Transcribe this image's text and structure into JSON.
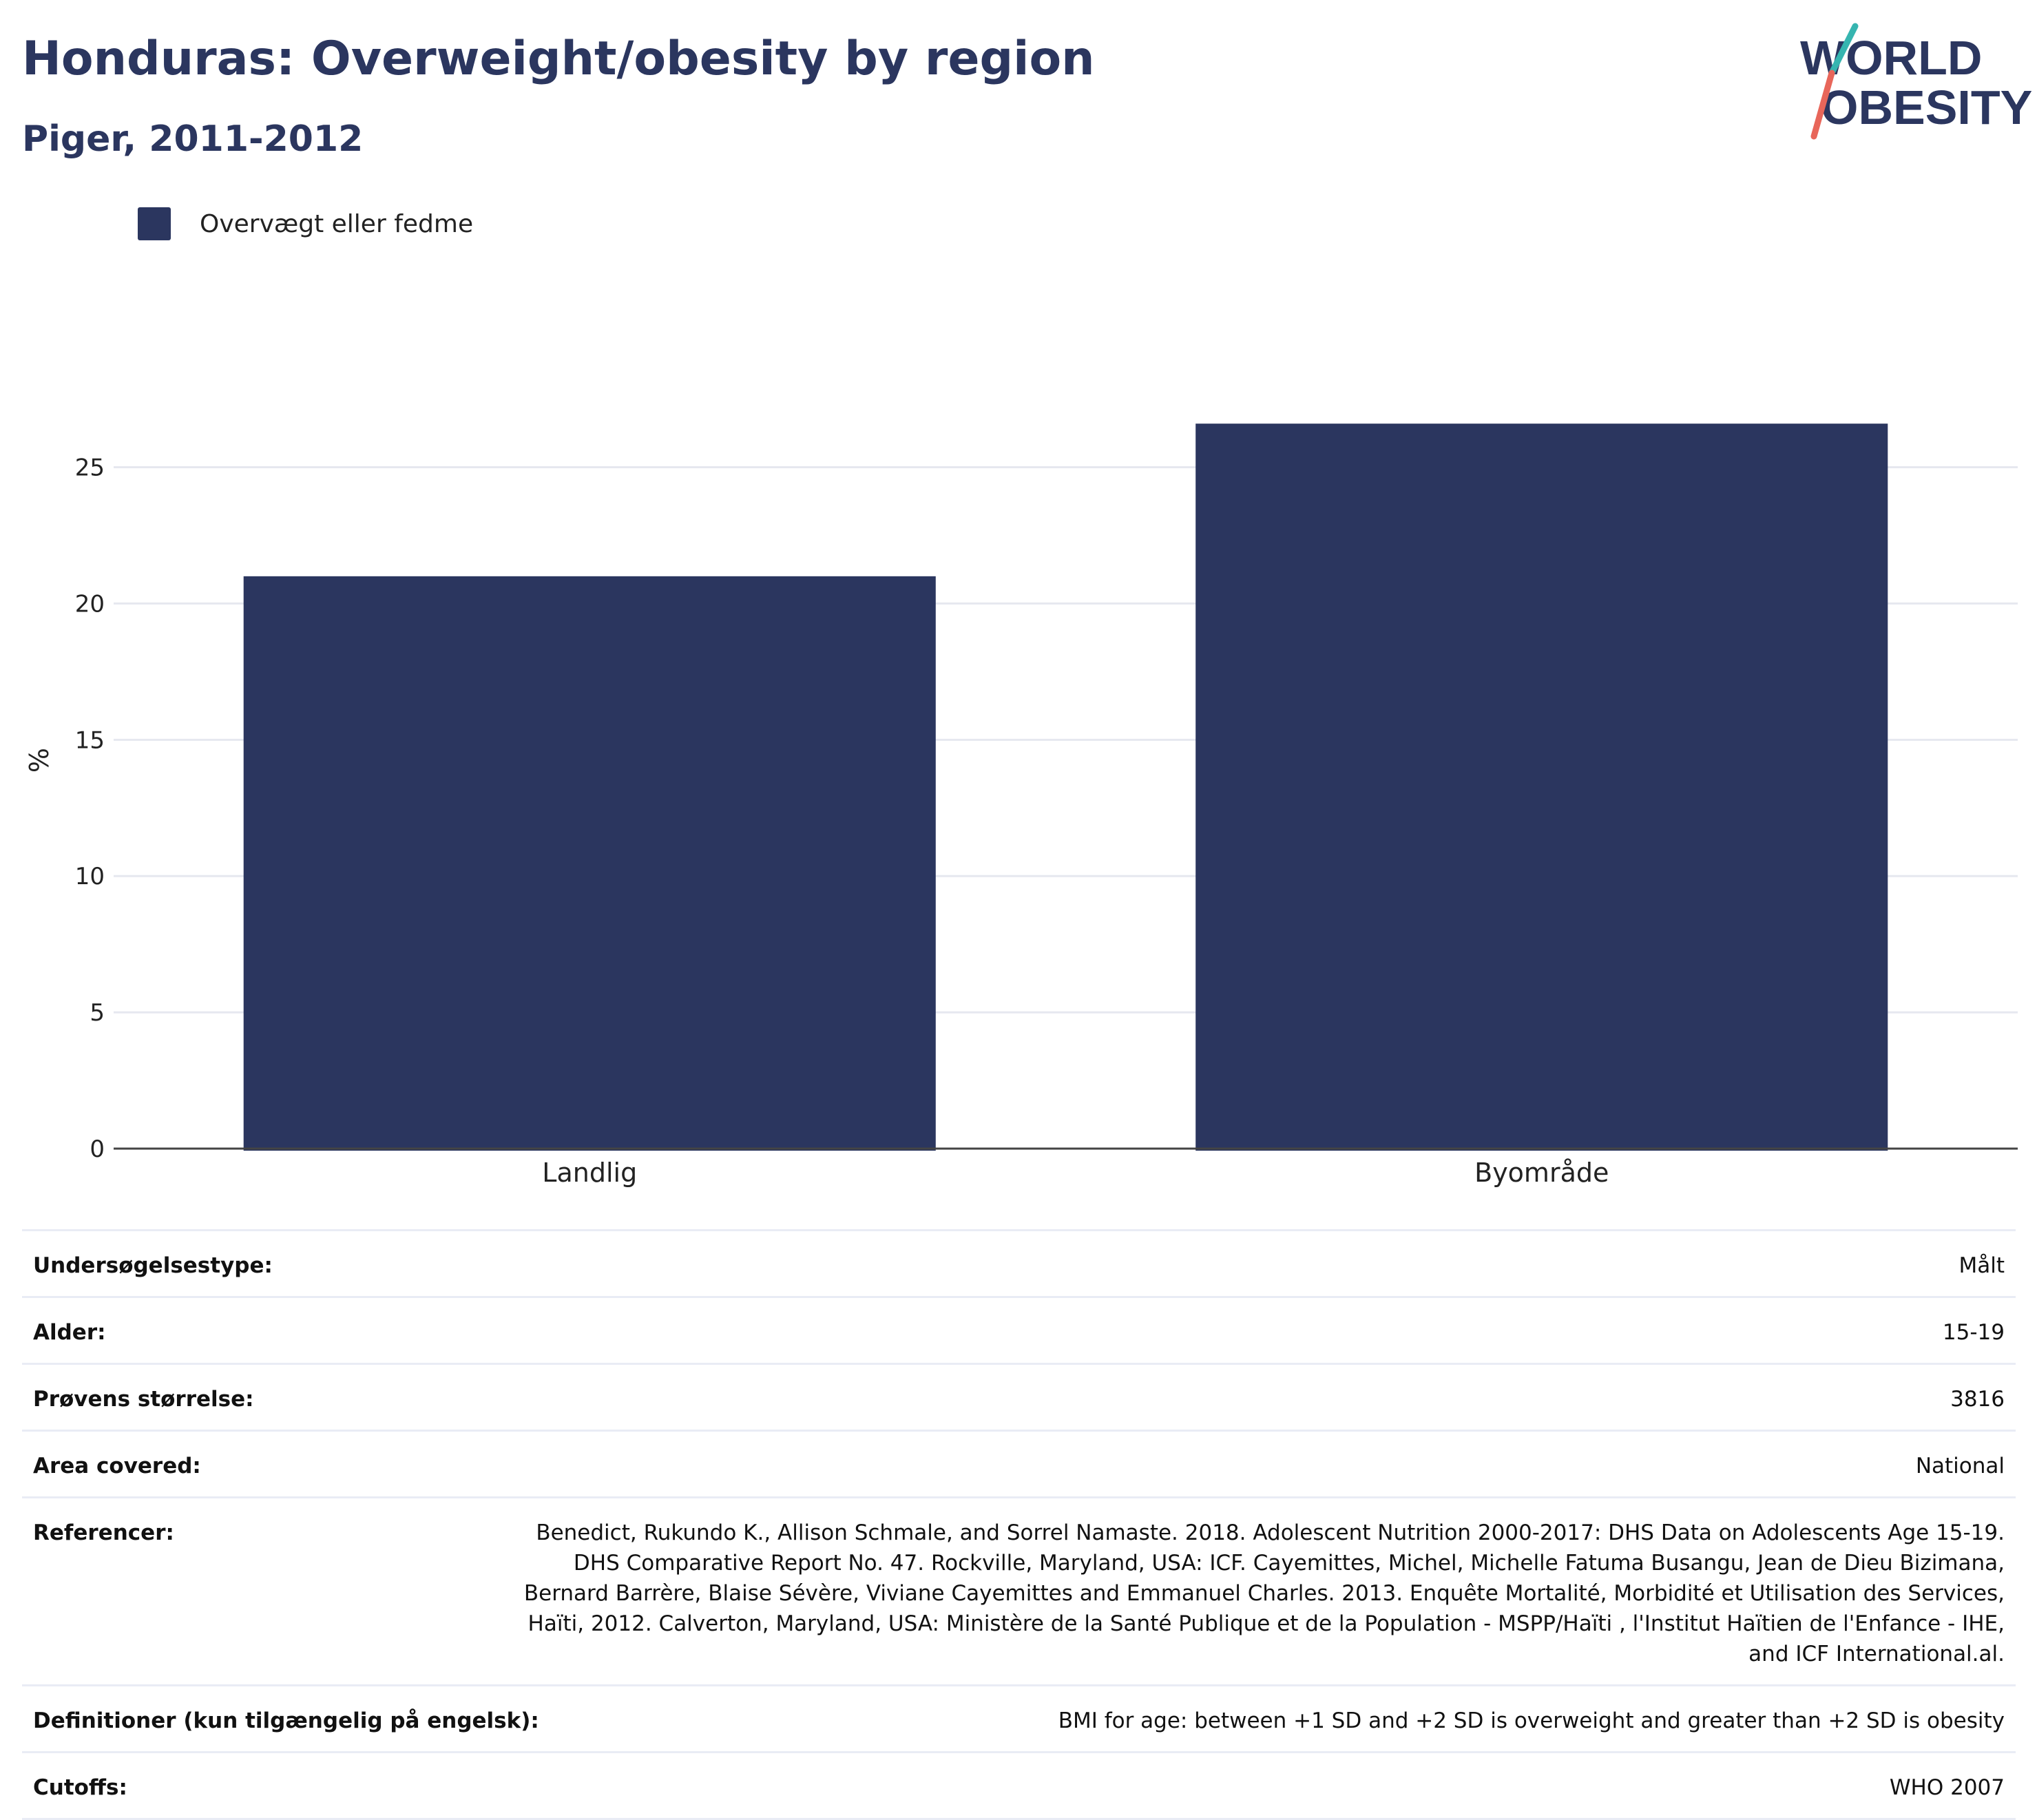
{
  "header": {
    "title": "Honduras: Overweight/obesity by region",
    "subtitle": "Piger, 2011-2012"
  },
  "logo": {
    "line1": "WORLD",
    "line2": "OBESITY",
    "accent_teal": "#36b5b0",
    "accent_red": "#e8665a",
    "text_color": "#2b365f"
  },
  "legend": {
    "items": [
      {
        "label": "Overvægt eller fedme",
        "color": "#2b365f"
      }
    ]
  },
  "chart_data": {
    "type": "bar",
    "categories": [
      "Landlig",
      "Byområde"
    ],
    "series": [
      {
        "name": "Overvægt eller fedme",
        "values": [
          21.0,
          26.6
        ],
        "color": "#2b365f"
      }
    ],
    "ylabel": "%",
    "xlabel": "",
    "ylim": [
      0,
      28.5
    ],
    "yticks": [
      0,
      5,
      10,
      15,
      20,
      25
    ],
    "grid": true,
    "legend_position": "top-left"
  },
  "info": {
    "rows": [
      {
        "label": "Undersøgelsestype:",
        "value": "Målt"
      },
      {
        "label": "Alder:",
        "value": "15-19"
      },
      {
        "label": "Prøvens størrelse:",
        "value": "3816"
      },
      {
        "label": "Area covered:",
        "value": "National"
      },
      {
        "label": "Referencer:",
        "value": "Benedict, Rukundo K., Allison Schmale, and Sorrel Namaste. 2018. Adolescent Nutrition 2000-2017: DHS Data on Adolescents Age 15-19. DHS Comparative Report No. 47. Rockville, Maryland, USA: ICF. Cayemittes, Michel, Michelle Fatuma Busangu, Jean de Dieu Bizimana, Bernard Barrère, Blaise Sévère, Viviane Cayemittes and Emmanuel Charles. 2013. Enquête Mortalité, Morbidité et Utilisation des Services, Haïti, 2012. Calverton, Maryland, USA: Ministère de la Santé Publique et de la Population - MSPP/Haïti , l'Institut Haïtien de l'Enfance - IHE, and ICF International.al."
      },
      {
        "label": "Definitioner (kun tilgængelig på engelsk):",
        "value": "BMI for age: between +1 SD and +2 SD is overweight and greater than +2 SD is obesity"
      },
      {
        "label": "Cutoffs:",
        "value": "WHO 2007"
      }
    ]
  }
}
